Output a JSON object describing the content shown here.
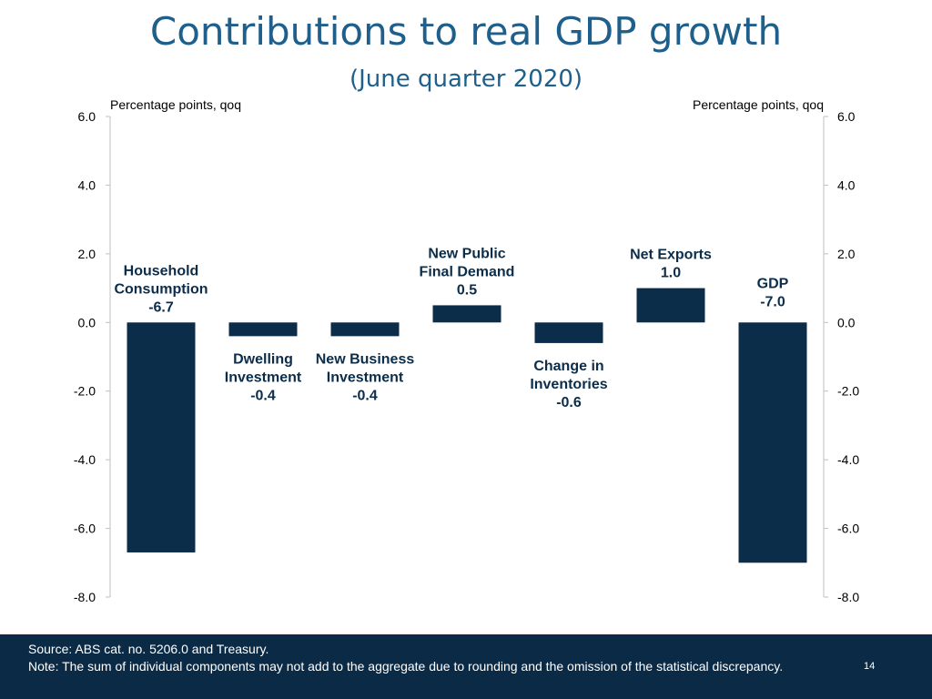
{
  "chart_data": {
    "type": "bar",
    "title": "Contributions to real GDP growth",
    "subtitle": "(June quarter 2020)",
    "ylabel_left": "Percentage points, qoq",
    "ylabel_right": "Percentage points, qoq",
    "ylim": [
      -8,
      6
    ],
    "yticks": [
      6,
      4,
      2,
      0,
      -2,
      -4,
      -6,
      -8
    ],
    "ytick_labels": [
      "6.0",
      "4.0",
      "2.0",
      "0.0",
      "-2.0",
      "-4.0",
      "-6.0",
      "-8.0"
    ],
    "bar_color": "#0b2d4a",
    "bars": [
      {
        "label": [
          "Household",
          "Consumption"
        ],
        "value": -6.7,
        "value_label": "-6.7"
      },
      {
        "label": [
          "Dwelling",
          "Investment"
        ],
        "value": -0.4,
        "value_label": "-0.4"
      },
      {
        "label": [
          "New Business",
          "Investment"
        ],
        "value": -0.4,
        "value_label": "-0.4"
      },
      {
        "label": [
          "New Public",
          "Final Demand"
        ],
        "value": 0.5,
        "value_label": "0.5"
      },
      {
        "label": [
          "Change in",
          "Inventories"
        ],
        "value": -0.6,
        "value_label": "-0.6"
      },
      {
        "label": [
          "Net Exports"
        ],
        "value": 1.0,
        "value_label": "1.0"
      },
      {
        "label": [
          "GDP"
        ],
        "value": -7.0,
        "value_label": "-7.0"
      }
    ]
  },
  "footer": {
    "source": "Source: ABS cat. no. 5206.0 and Treasury.",
    "note": "Note: The sum of individual components may not add to the aggregate due to rounding and the omission of the statistical discrepancy.",
    "page_number": "14"
  }
}
